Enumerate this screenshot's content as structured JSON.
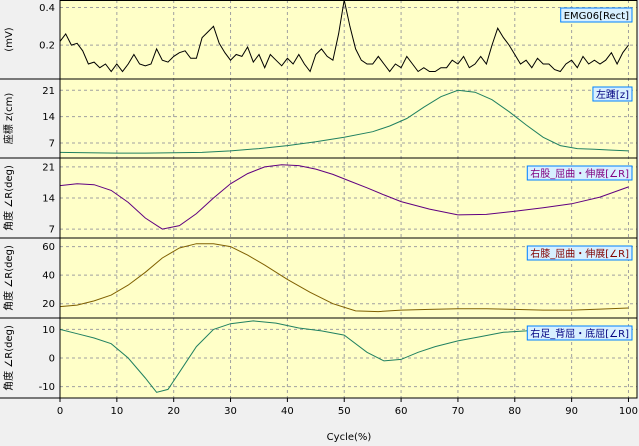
{
  "x_title": "Cycle(%)",
  "x_ticks": [
    0,
    10,
    20,
    30,
    40,
    50,
    60,
    70,
    80,
    90,
    100
  ],
  "colors": {
    "plot_bg": "#ffffc8",
    "grid": "#a0a0a0",
    "legend_bg": "#d8f0ff",
    "legend_border": "#0080ff"
  },
  "chart_data": [
    {
      "type": "line",
      "title": "",
      "ylabel": "(mV)",
      "ylim": [
        0.02,
        0.44
      ],
      "yticks": [
        0.4,
        0.2
      ],
      "legend": "EMG06[Rect]",
      "legend_color": "#000000",
      "line_color": "#000000",
      "x": [
        0,
        1,
        2,
        3,
        4,
        5,
        6,
        7,
        8,
        9,
        10,
        11,
        12,
        13,
        14,
        15,
        16,
        17,
        18,
        19,
        20,
        21,
        22,
        23,
        24,
        25,
        26,
        27,
        28,
        29,
        30,
        31,
        32,
        33,
        34,
        35,
        36,
        37,
        38,
        39,
        40,
        41,
        42,
        43,
        44,
        45,
        46,
        47,
        48,
        49,
        50,
        51,
        52,
        53,
        54,
        55,
        56,
        57,
        58,
        59,
        60,
        61,
        62,
        63,
        64,
        65,
        66,
        67,
        68,
        69,
        70,
        71,
        72,
        73,
        74,
        75,
        76,
        77,
        78,
        79,
        80,
        81,
        82,
        83,
        84,
        85,
        86,
        87,
        88,
        89,
        90,
        91,
        92,
        93,
        94,
        95,
        96,
        97,
        98,
        99,
        100
      ],
      "y": [
        0.22,
        0.26,
        0.2,
        0.21,
        0.17,
        0.1,
        0.11,
        0.08,
        0.1,
        0.06,
        0.1,
        0.06,
        0.1,
        0.15,
        0.1,
        0.09,
        0.1,
        0.18,
        0.12,
        0.11,
        0.14,
        0.16,
        0.17,
        0.13,
        0.13,
        0.24,
        0.27,
        0.3,
        0.21,
        0.16,
        0.12,
        0.15,
        0.14,
        0.19,
        0.11,
        0.15,
        0.08,
        0.15,
        0.12,
        0.09,
        0.13,
        0.1,
        0.15,
        0.1,
        0.06,
        0.15,
        0.18,
        0.14,
        0.12,
        0.26,
        0.44,
        0.3,
        0.18,
        0.12,
        0.1,
        0.1,
        0.14,
        0.1,
        0.06,
        0.1,
        0.08,
        0.14,
        0.1,
        0.06,
        0.08,
        0.06,
        0.06,
        0.08,
        0.08,
        0.12,
        0.1,
        0.14,
        0.08,
        0.1,
        0.14,
        0.1,
        0.2,
        0.29,
        0.24,
        0.2,
        0.15,
        0.1,
        0.12,
        0.08,
        0.13,
        0.1,
        0.1,
        0.07,
        0.06,
        0.1,
        0.12,
        0.08,
        0.14,
        0.1,
        0.12,
        0.1,
        0.12,
        0.16,
        0.1,
        0.16,
        0.2
      ]
    },
    {
      "type": "line",
      "title": "",
      "ylabel": "座標 z(cm)",
      "ylim": [
        3,
        24
      ],
      "yticks": [
        21,
        14,
        7
      ],
      "legend": "左踵[z]",
      "legend_color": "#000080",
      "line_color": "#208060",
      "x": [
        0,
        5,
        10,
        15,
        20,
        25,
        30,
        35,
        40,
        45,
        50,
        55,
        58,
        61,
        64,
        67,
        70,
        73,
        76,
        79,
        82,
        85,
        88,
        91,
        94,
        97,
        100
      ],
      "y": [
        4.5,
        4.4,
        4.3,
        4.3,
        4.4,
        4.5,
        4.9,
        5.5,
        6.3,
        7.3,
        8.5,
        10,
        11.5,
        13.5,
        16.5,
        19.3,
        21,
        20.5,
        18.5,
        15.3,
        11.8,
        8.5,
        6.3,
        5.5,
        5.3,
        5.1,
        4.9
      ]
    },
    {
      "type": "line",
      "title": "",
      "ylabel": "角度 ∠R(deg)",
      "ylim": [
        5,
        23
      ],
      "yticks": [
        21,
        14,
        7
      ],
      "legend": "右股_屈曲・伸展[∠R]",
      "legend_color": "#800080",
      "line_color": "#600080",
      "x": [
        0,
        3,
        6,
        9,
        12,
        15,
        18,
        21,
        24,
        27,
        30,
        33,
        36,
        39,
        42,
        45,
        48,
        51,
        54,
        57,
        60,
        65,
        70,
        75,
        80,
        85,
        90,
        95,
        100
      ],
      "y": [
        16.8,
        17.2,
        17,
        15.7,
        13,
        9.5,
        7,
        7.8,
        10.5,
        14,
        17.2,
        19.5,
        21,
        21.5,
        21.3,
        20.5,
        19.3,
        17.8,
        16.3,
        14.7,
        13.2,
        11.5,
        10.2,
        10.3,
        11,
        11.8,
        12.7,
        14.2,
        16.5
      ]
    },
    {
      "type": "line",
      "title": "",
      "ylabel": "角度 ∠R(deg)",
      "ylim": [
        10,
        66
      ],
      "yticks": [
        60,
        40,
        20
      ],
      "legend": "右膝_屈曲・伸展[∠R]",
      "legend_color": "#800000",
      "line_color": "#806000",
      "x": [
        0,
        3,
        6,
        9,
        12,
        15,
        18,
        21,
        24,
        27,
        30,
        33,
        36,
        40,
        44,
        48,
        52,
        56,
        60,
        65,
        70,
        75,
        80,
        85,
        90,
        95,
        100
      ],
      "y": [
        18,
        19,
        22,
        26,
        33,
        42,
        52,
        59,
        62,
        62,
        60,
        54,
        47,
        37,
        28,
        20,
        15,
        14.5,
        15.5,
        16,
        16.5,
        16.5,
        16,
        15.5,
        15.5,
        16.2,
        17
      ]
    },
    {
      "type": "line",
      "title": "",
      "ylabel": "角度 ∠R(deg)",
      "ylim": [
        -14,
        14
      ],
      "yticks": [
        10,
        0,
        -10
      ],
      "legend": "右足_背屈・底屈[∠R]",
      "legend_color": "#000080",
      "line_color": "#208060",
      "x": [
        0,
        3,
        6,
        9,
        12,
        15,
        17,
        19,
        21,
        24,
        27,
        30,
        34,
        38,
        42,
        46,
        50,
        54,
        57,
        60,
        63,
        66,
        70,
        74,
        78,
        82,
        86,
        90,
        95,
        100
      ],
      "y": [
        10,
        8.5,
        7,
        5,
        0,
        -7,
        -12,
        -11,
        -5,
        4,
        10,
        12,
        13,
        12.2,
        10.5,
        9.5,
        8,
        2,
        -1,
        -0.5,
        2,
        4,
        6,
        7.5,
        9,
        9.5,
        10.3,
        10.8,
        11,
        11
      ]
    }
  ]
}
